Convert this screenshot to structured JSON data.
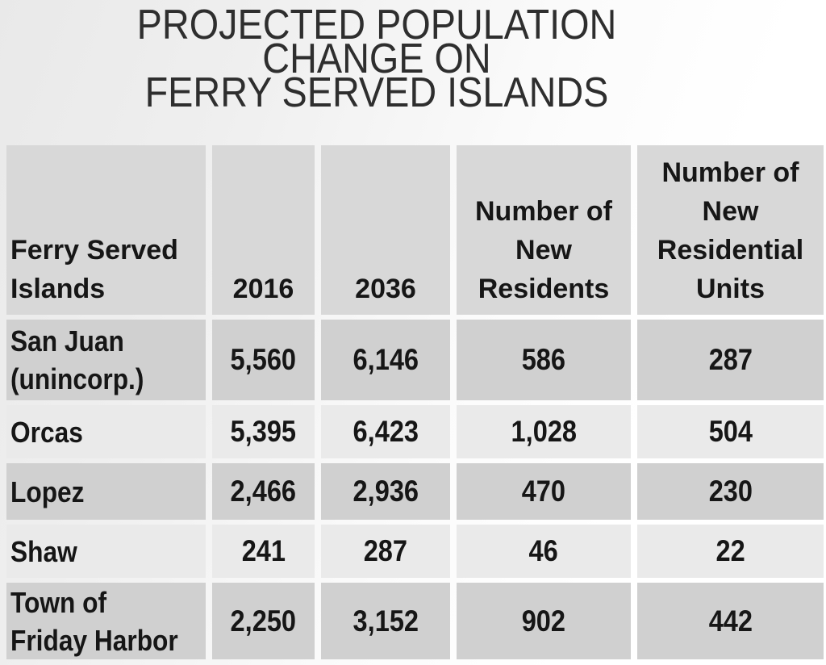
{
  "title": "PROJECTED POPULATION\nCHANGE ON\nFERRY SERVED ISLANDS",
  "table": {
    "headers": {
      "island": "Ferry Served\nIslands",
      "y2016": "2016",
      "y2036": "2036",
      "new_residents": "Number of\nNew\nResidents",
      "new_units": "Number of\nNew\nResidential\nUnits"
    },
    "rows": [
      {
        "name": "San Juan\n(unincorp.)",
        "values": [
          "5,560",
          "6,146",
          "586",
          "287"
        ]
      },
      {
        "name": "Orcas",
        "values": [
          "5,395",
          "6,423",
          "1,028",
          "504"
        ]
      },
      {
        "name": "Lopez",
        "values": [
          "2,466",
          "2,936",
          "470",
          "230"
        ]
      },
      {
        "name": "Shaw",
        "values": [
          "241",
          "287",
          "46",
          "22"
        ]
      },
      {
        "name": "Town of\nFriday Harbor",
        "values": [
          "2,250",
          "3,152",
          "902",
          "442"
        ]
      }
    ]
  },
  "colors": {
    "header_bg": "#d8d8d8",
    "row_dark_bg": "#d0d0d0",
    "row_light_bg": "#eaeaea",
    "cell_gap": "#ffffff",
    "text": "#161616",
    "title_text": "#2e2e2e"
  },
  "chart_data": {
    "type": "table",
    "title": "PROJECTED POPULATION CHANGE ON FERRY SERVED ISLANDS",
    "columns": [
      "Ferry Served Islands",
      "2016",
      "2036",
      "Number of New Residents",
      "Number of New Residential Units"
    ],
    "rows": [
      [
        "San Juan (unincorp.)",
        5560,
        6146,
        586,
        287
      ],
      [
        "Orcas",
        5395,
        6423,
        1028,
        504
      ],
      [
        "Lopez",
        2466,
        2936,
        470,
        230
      ],
      [
        "Shaw",
        241,
        287,
        46,
        22
      ],
      [
        "Town of Friday Harbor",
        2250,
        3152,
        902,
        442
      ]
    ]
  }
}
